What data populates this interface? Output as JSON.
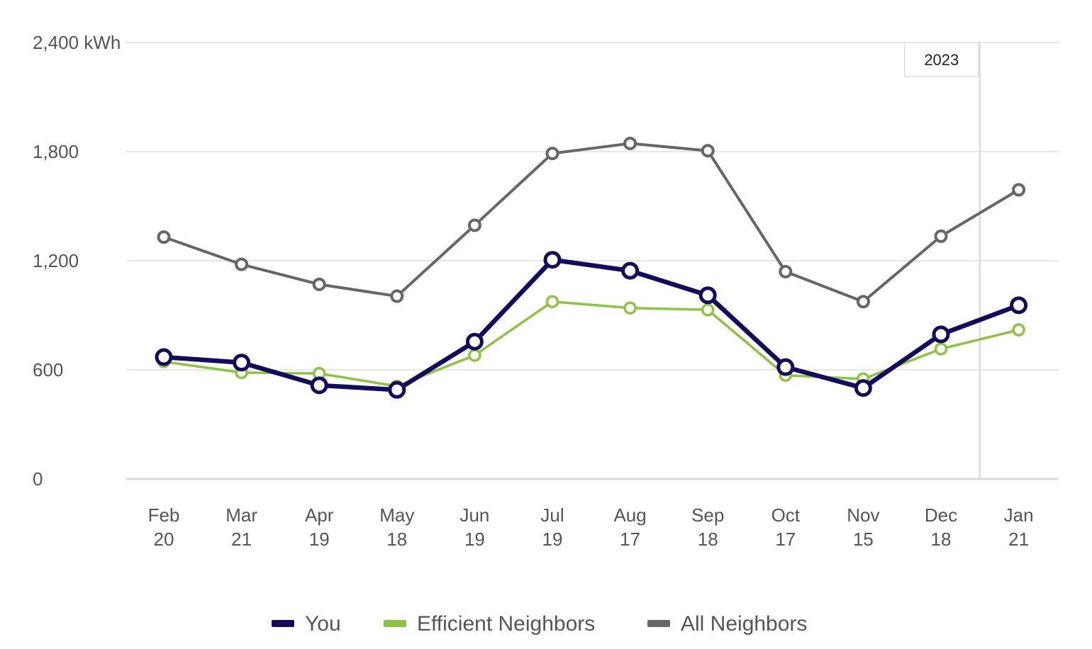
{
  "chart_data": {
    "type": "line",
    "title": "",
    "xlabel": "",
    "ylabel": "kWh",
    "ylim": [
      0,
      2400
    ],
    "yticks": [
      {
        "value": 0,
        "label": "0"
      },
      {
        "value": 600,
        "label": "600"
      },
      {
        "value": 1200,
        "label": "1,200"
      },
      {
        "value": 1800,
        "label": "1,800"
      },
      {
        "value": 2400,
        "label": "2,400 kWh"
      }
    ],
    "categories": [
      {
        "month": "Feb",
        "day": "20"
      },
      {
        "month": "Mar",
        "day": "21"
      },
      {
        "month": "Apr",
        "day": "19"
      },
      {
        "month": "May",
        "day": "18"
      },
      {
        "month": "Jun",
        "day": "19"
      },
      {
        "month": "Jul",
        "day": "19"
      },
      {
        "month": "Aug",
        "day": "17"
      },
      {
        "month": "Sep",
        "day": "18"
      },
      {
        "month": "Oct",
        "day": "17"
      },
      {
        "month": "Nov",
        "day": "15"
      },
      {
        "month": "Dec",
        "day": "18"
      },
      {
        "month": "Jan",
        "day": "21"
      }
    ],
    "series": [
      {
        "key": "all-neighbors",
        "name": "All Neighbors",
        "color": "#666666",
        "values": [
          1330,
          1180,
          1070,
          1005,
          1395,
          1790,
          1845,
          1805,
          1140,
          975,
          1335,
          1590
        ]
      },
      {
        "key": "efficient-neighbors",
        "name": "Efficient Neighbors",
        "color": "#8cc43f",
        "values": [
          645,
          585,
          580,
          510,
          680,
          975,
          940,
          930,
          570,
          550,
          715,
          820
        ]
      },
      {
        "key": "you",
        "name": "You",
        "color": "#120c5e",
        "values": [
          670,
          640,
          515,
          490,
          755,
          1205,
          1145,
          1010,
          615,
          500,
          795,
          955
        ]
      }
    ],
    "annotations": [
      {
        "text": "2023",
        "between_categories": [
          10,
          11
        ]
      }
    ],
    "legend": {
      "position": "bottom-center",
      "order": [
        "You",
        "Efficient Neighbors",
        "All Neighbors"
      ]
    },
    "grid": true
  }
}
